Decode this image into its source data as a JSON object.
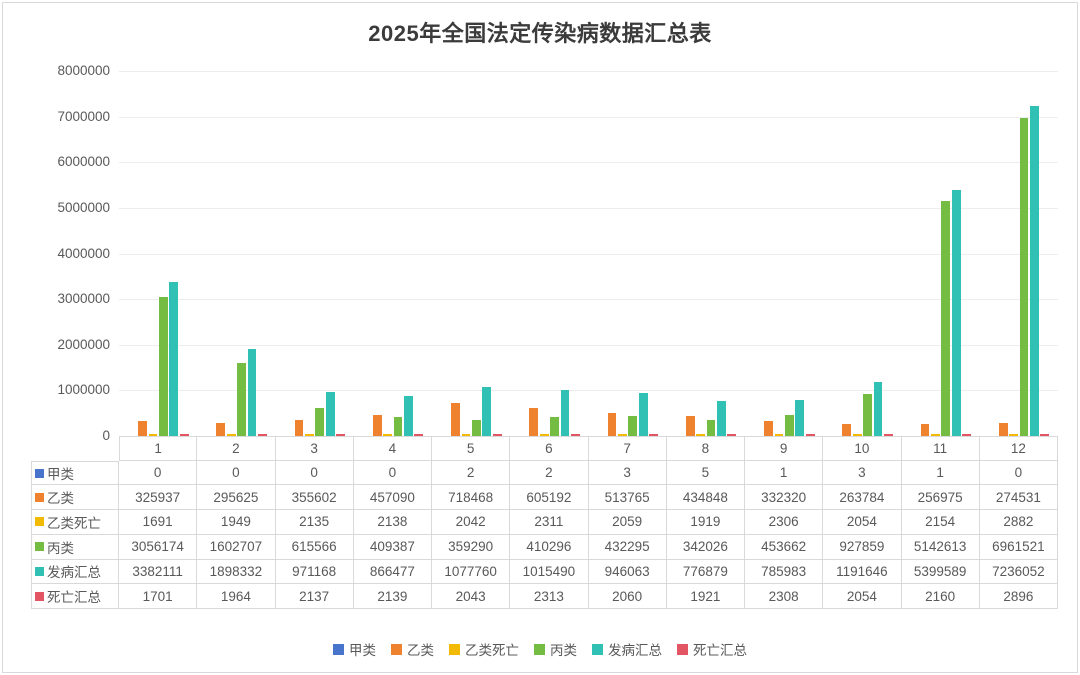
{
  "chart_data": {
    "type": "bar",
    "title": "2025年全国法定传染病数据汇总表",
    "categories": [
      "1",
      "2",
      "3",
      "4",
      "5",
      "6",
      "7",
      "8",
      "9",
      "10",
      "11",
      "12"
    ],
    "series": [
      {
        "name": "甲类",
        "color": "#4874CB",
        "values": [
          0,
          0,
          0,
          0,
          2,
          2,
          3,
          5,
          1,
          3,
          1,
          0
        ]
      },
      {
        "name": "乙类",
        "color": "#EE822F",
        "values": [
          325937,
          295625,
          355602,
          457090,
          718468,
          605192,
          513765,
          434848,
          332320,
          263784,
          256975,
          274531
        ]
      },
      {
        "name": "乙类死亡",
        "color": "#F2BA02",
        "values": [
          1691,
          1949,
          2135,
          2138,
          2042,
          2311,
          2059,
          1919,
          2306,
          2054,
          2154,
          2882
        ]
      },
      {
        "name": "丙类",
        "color": "#75BD42",
        "values": [
          3056174,
          1602707,
          615566,
          409387,
          359290,
          410296,
          432295,
          342026,
          453662,
          927859,
          5142613,
          6961521
        ]
      },
      {
        "name": "发病汇总",
        "color": "#30C0B4",
        "values": [
          3382111,
          1898332,
          971168,
          866477,
          1077760,
          1015490,
          946063,
          776879,
          785983,
          1191646,
          5399589,
          7236052
        ]
      },
      {
        "name": "死亡汇总",
        "color": "#E25563",
        "values": [
          1701,
          1964,
          2137,
          2139,
          2043,
          2313,
          2060,
          1921,
          2308,
          2054,
          2160,
          2896
        ]
      }
    ],
    "ylim": [
      0,
      8000000
    ],
    "ytick_step": 1000000,
    "yticks": [
      "8000000",
      "7000000",
      "6000000",
      "5000000",
      "4000000",
      "3000000",
      "2000000",
      "1000000",
      "0"
    ],
    "grid": true,
    "legend_position": "bottom",
    "data_table_attached": true
  },
  "colors": {
    "grid": "#ededed",
    "table_border": "#d9d9d9",
    "text": "#595959",
    "title_text": "#3b3b3b"
  }
}
